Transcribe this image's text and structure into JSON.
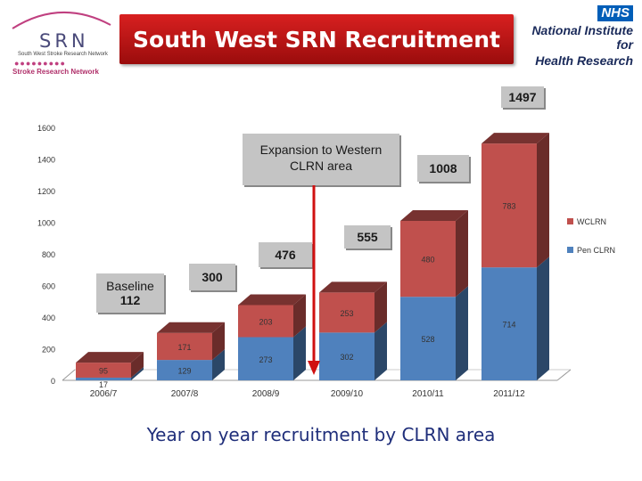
{
  "header": {
    "title": "South West SRN Recruitment",
    "logo_letters": "SRN",
    "logo_subtitle": "South West Stroke Research Network",
    "logo_network": "Stroke Research Network",
    "nhs_badge": "NHS",
    "nihr_line1": "National Institute for",
    "nihr_line2": "Health Research"
  },
  "subtitle": "Year on year recruitment by CLRN area",
  "colors": {
    "wclrn": "#c0504d",
    "pen_clrn": "#4f81bd",
    "title_banner": "#c0171a",
    "arrow": "#d01010"
  },
  "chart_data": {
    "type": "bar",
    "stacked": true,
    "categories": [
      "2006/7",
      "2007/8",
      "2008/9",
      "2009/10",
      "2010/11",
      "2011/12"
    ],
    "series": [
      {
        "name": "Pen CLRN",
        "values": [
          17,
          129,
          273,
          302,
          528,
          714
        ]
      },
      {
        "name": "WCLRN",
        "values": [
          95,
          171,
          203,
          253,
          480,
          783
        ]
      }
    ],
    "totals": [
      "112",
      "300",
      "476",
      "555",
      "1008",
      "1497"
    ],
    "ylim": [
      0,
      1600
    ],
    "yticks": [
      "0",
      "200",
      "400",
      "600",
      "800",
      "1000",
      "1200",
      "1400",
      "1600"
    ],
    "legend_position": "right",
    "annotations": {
      "baseline": "Baseline",
      "expansion": "Expansion to Western CLRN area"
    }
  }
}
